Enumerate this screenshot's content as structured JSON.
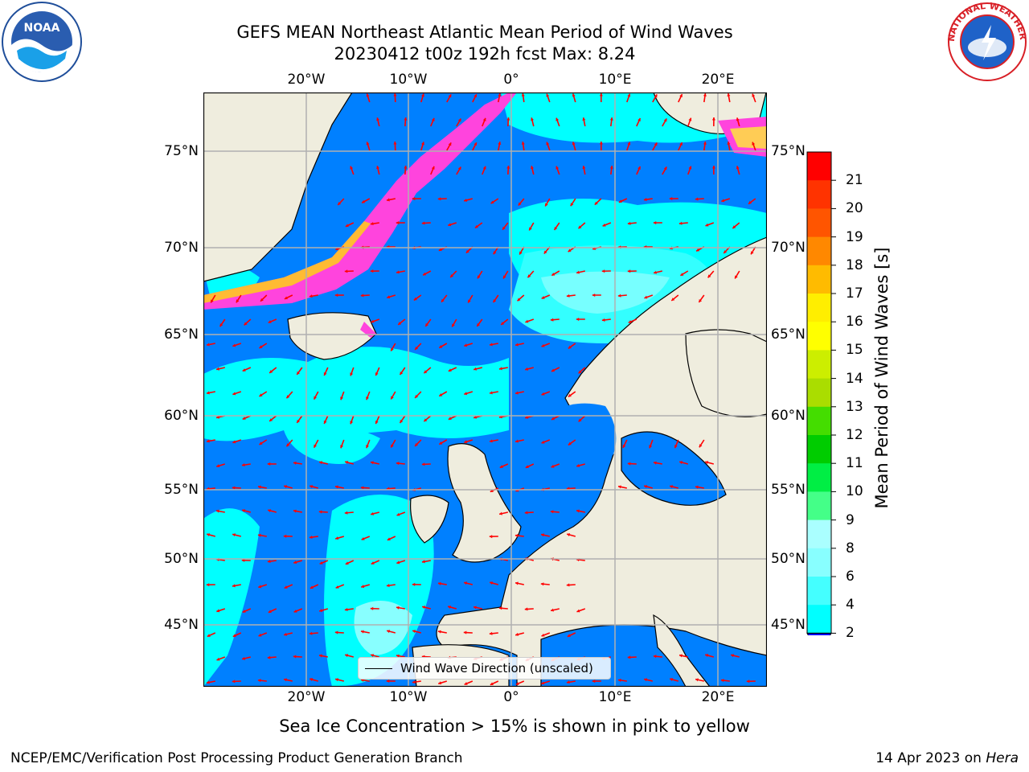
{
  "title": {
    "line1": "GEFS MEAN Northeast Atlantic Mean Period of Wind Waves",
    "line2": "20230412 t00z 192h fcst   Max: 8.24"
  },
  "map": {
    "lon_labels": [
      "20°W",
      "10°W",
      "0°",
      "10°E",
      "20°E"
    ],
    "lat_labels": [
      "75°N",
      "70°N",
      "65°N",
      "60°N",
      "55°N",
      "50°N",
      "45°N"
    ],
    "colors": {
      "land": "#efedde",
      "ocean_low": "#0080ff",
      "ocean_mid": "#00ffff",
      "vector": "#ff0000",
      "sea_ice": "#ff44dd",
      "grid": "#b0b0b0"
    }
  },
  "legend": {
    "label": "Wind Wave Direction (unscaled)"
  },
  "colorbar": {
    "label": "Mean Period of Wind Waves [s]",
    "ticks": [
      "2",
      "4",
      "6",
      "8",
      "9",
      "10",
      "11",
      "12",
      "13",
      "14",
      "15",
      "16",
      "17",
      "18",
      "19",
      "20",
      "21"
    ],
    "colors": [
      "#0080ff",
      "#00ffff",
      "#44ffff",
      "#88ffff",
      "#aaffff",
      "#44ff88",
      "#00ee44",
      "#00cc00",
      "#44dd00",
      "#aadd00",
      "#ccee00",
      "#ffff00",
      "#ffee00",
      "#ffbb00",
      "#ff8800",
      "#ff5500",
      "#ff3300",
      "#ff0000"
    ]
  },
  "logos": {
    "left": "NOAA",
    "right": "NATIONAL WEATHER SERVICE"
  },
  "caption": "Sea Ice Concentration > 15% is shown in pink to yellow",
  "footer": {
    "left": "NCEP/EMC/Verification Post Processing Product Generation Branch",
    "right_prefix": "14 Apr 2023 on ",
    "right_machine": "Hera"
  }
}
